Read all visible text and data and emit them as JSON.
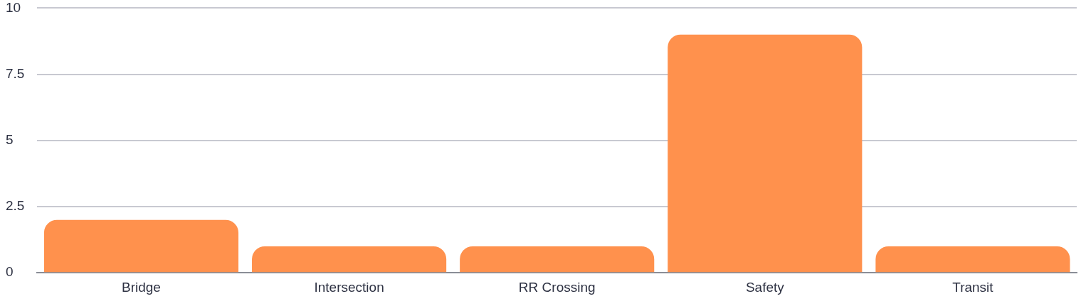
{
  "chart_data": {
    "type": "bar",
    "categories": [
      "Bridge",
      "Intersection",
      "RR Crossing",
      "Safety",
      "Transit"
    ],
    "values": [
      2,
      1,
      1,
      9,
      1
    ],
    "color": "#ff914d",
    "ylim": [
      0,
      10
    ],
    "yticks": [
      0,
      2.5,
      5,
      7.5,
      10
    ],
    "grid": "y"
  }
}
